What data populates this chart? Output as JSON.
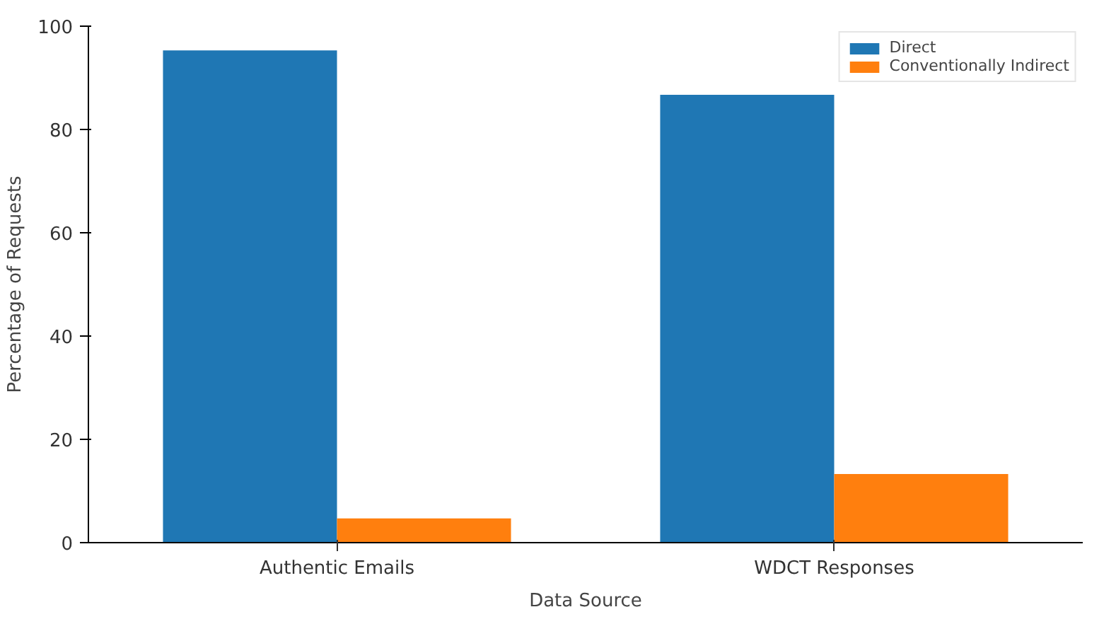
{
  "chart_data": {
    "type": "bar",
    "xlabel": "Data Source",
    "ylabel": "Percentage of Requests",
    "categories": [
      "Authentic Emails",
      "WDCT Responses"
    ],
    "series": [
      {
        "name": "Direct",
        "color": "#1f77b4",
        "values": [
          95.3,
          86.7
        ]
      },
      {
        "name": "Conventionally Indirect",
        "color": "#ff7f0e",
        "values": [
          4.7,
          13.3
        ]
      }
    ],
    "ylim": [
      0,
      100
    ],
    "yticks": [
      0,
      20,
      40,
      60,
      80,
      100
    ],
    "grid": false,
    "legend": "top right"
  }
}
